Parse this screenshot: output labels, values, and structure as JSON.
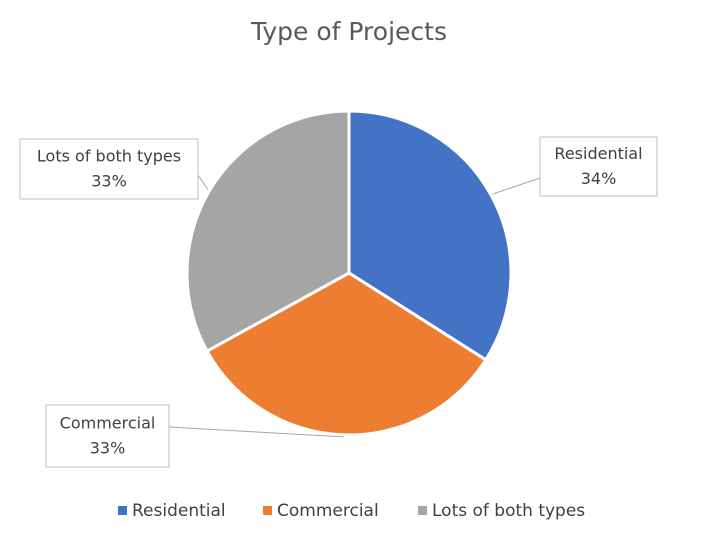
{
  "chart_data": {
    "type": "pie",
    "title": "Type of Projects",
    "categories": [
      "Residential",
      "Commercial",
      "Lots of both types"
    ],
    "values": [
      34,
      33,
      33
    ],
    "value_labels": [
      "34%",
      "33%",
      "33%"
    ],
    "colors": [
      "#4472c4",
      "#ed7d31",
      "#a5a5a5"
    ],
    "legend": "bottom"
  }
}
